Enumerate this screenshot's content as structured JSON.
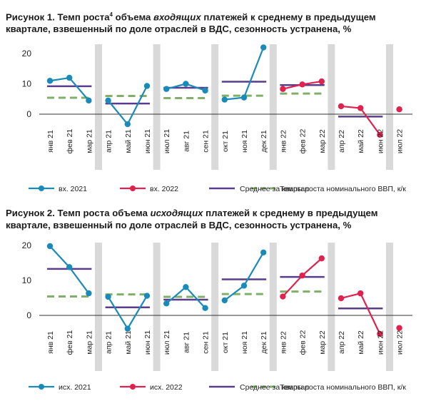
{
  "chart_data": [
    {
      "type": "line",
      "title_prefix": "Рисунок 1. Темп роста",
      "title_sup": "4",
      "title_mid": " объема ",
      "title_italic": "входящих",
      "title_suffix": " платежей к среднему в предыдущем квартале, взвешенный по доле отраслей в ВДС, сезонность устранена, %",
      "categories": [
        "янв 21",
        "фев 21",
        "мар 21",
        "апр 21",
        "май 21",
        "июн 21",
        "июл 21",
        "авг 21",
        "сен 21",
        "окт 21",
        "ноя 21",
        "дек 21",
        "янв 22",
        "фев 22",
        "мар 22",
        "апр 22",
        "май 22",
        "июн 22",
        "июл 22"
      ],
      "ylim": [
        -6,
        22
      ],
      "yticks": [
        0,
        10,
        20
      ],
      "series": [
        {
          "name": "вх. 2021",
          "color": "#1a8bb8",
          "segments": [
            [
              11,
              12,
              4.5
            ],
            [
              4.5,
              -3.3,
              9.3
            ],
            [
              8.3,
              10,
              7.8
            ],
            [
              4.8,
              5.5,
              22
            ]
          ],
          "start": [
            0,
            3,
            6,
            9
          ]
        },
        {
          "name": "вх. 2022",
          "color": "#e0224f",
          "segments": [
            [
              8.3,
              9.8,
              10.8
            ],
            [
              2.6,
              2,
              -6.8
            ],
            [
              1.6
            ]
          ],
          "start": [
            12,
            15,
            18
          ]
        }
      ],
      "quarter_avg": [
        9.2,
        3.5,
        8.7,
        10.7,
        9.6,
        -0.8
      ],
      "gdp": [
        5.4,
        6,
        5.3,
        6.1,
        6.8,
        null
      ],
      "legend": [
        "вх. 2021",
        "вх. 2022",
        "Среднее за квартал",
        "Темпы роста номинального ВВП, к/к"
      ]
    },
    {
      "type": "line",
      "title_prefix": "Рисунок 2. Темп роста объема ",
      "title_italic": "исходящих",
      "title_suffix": " платежей к среднему в предыдущем квартале, взвешенный по доле отраслей в ВДС, сезонность устранена, %",
      "categories": [
        "янв 21",
        "фев 21",
        "мар 21",
        "апр 21",
        "май 21",
        "июн 21",
        "июл 21",
        "авг 21",
        "сен 21",
        "окт 21",
        "ноя 21",
        "дек 21",
        "янв 22",
        "фев 22",
        "мар 22",
        "апр 22",
        "май 22",
        "июн 22",
        "июл 22"
      ],
      "ylim": [
        -6,
        22
      ],
      "yticks": [
        0,
        10,
        20
      ],
      "series": [
        {
          "name": "исх. 2021",
          "color": "#1a8bb8",
          "segments": [
            [
              19.8,
              13.8,
              6.3
            ],
            [
              5.3,
              -3.8,
              5.6
            ],
            [
              3.4,
              8.1,
              2.1
            ],
            [
              4.3,
              8.5,
              18
            ]
          ],
          "start": [
            0,
            3,
            6,
            9
          ]
        },
        {
          "name": "исх. 2022",
          "color": "#e0224f",
          "segments": [
            [
              5.4,
              11.4,
              16.3
            ],
            [
              4.9,
              6.3,
              -5.3
            ],
            [
              -3.6
            ]
          ],
          "start": [
            12,
            15,
            18
          ]
        }
      ],
      "quarter_avg": [
        13.3,
        2.3,
        4.5,
        10.3,
        11,
        2
      ],
      "gdp": [
        5.4,
        6,
        5.3,
        6.1,
        6.8,
        null
      ],
      "legend": [
        "исх. 2021",
        "исх. 2022",
        "Среднее за квартал",
        "Темпы роста номинального ВВП, к/к"
      ]
    }
  ],
  "colors": {
    "band": "#d9d9d9",
    "avg": "#5a3d8a",
    "gdp": "#7fb069",
    "axis": "#333333"
  }
}
